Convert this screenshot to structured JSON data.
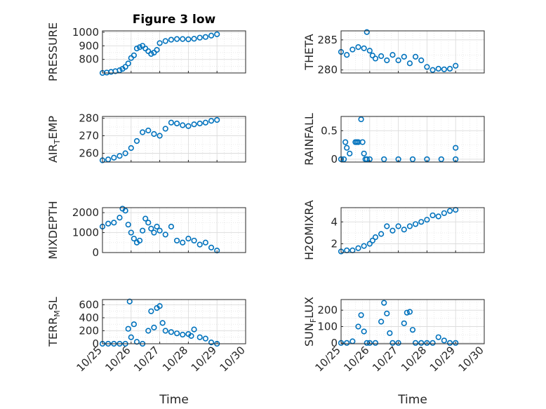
{
  "title": "Figure 3 low",
  "colors": {
    "marker": "#0072BD",
    "axis": "#262626",
    "grid": "#dcdcdc",
    "background": "#ffffff"
  },
  "shared_x": {
    "label": "Time",
    "range": [
      0,
      5
    ],
    "ticks": [
      0,
      1,
      2,
      3,
      4,
      5
    ],
    "tick_labels": [
      "10/25",
      "10/26",
      "10/27",
      "10/28",
      "10/29",
      "10/30"
    ]
  },
  "chart_data": [
    {
      "type": "scatter",
      "id": "pressure",
      "ylabel": "PRESSURE",
      "title": "Figure 3 low",
      "ylim": [
        700,
        1010
      ],
      "yticks": [
        800,
        900,
        1000
      ],
      "ytick_labels": [
        "800",
        "900",
        "1000"
      ],
      "show_xticklabels": false,
      "x": [
        0,
        0.15,
        0.3,
        0.45,
        0.6,
        0.7,
        0.8,
        0.9,
        1.0,
        1.1,
        1.2,
        1.3,
        1.4,
        1.5,
        1.6,
        1.7,
        1.8,
        1.9,
        2.0,
        2.2,
        2.4,
        2.6,
        2.8,
        3.0,
        3.2,
        3.4,
        3.6,
        3.8,
        4.0
      ],
      "y": [
        700,
        703,
        708,
        713,
        720,
        730,
        745,
        770,
        810,
        830,
        880,
        890,
        900,
        880,
        860,
        840,
        850,
        870,
        920,
        935,
        945,
        950,
        950,
        948,
        952,
        960,
        965,
        975,
        985
      ]
    },
    {
      "type": "scatter",
      "id": "theta",
      "ylabel": "THETA",
      "ylim": [
        279.5,
        286.5
      ],
      "yticks": [
        280,
        285
      ],
      "ytick_labels": [
        "280",
        "285"
      ],
      "show_xticklabels": false,
      "x": [
        0,
        0.2,
        0.4,
        0.6,
        0.8,
        0.9,
        1.0,
        1.1,
        1.2,
        1.4,
        1.6,
        1.8,
        2.0,
        2.2,
        2.4,
        2.6,
        2.8,
        3.0,
        3.2,
        3.4,
        3.6,
        3.8,
        4.0
      ],
      "y": [
        283,
        282.5,
        283.4,
        283.8,
        283.6,
        286.3,
        283.2,
        282.4,
        281.9,
        282.3,
        281.6,
        282.5,
        281.6,
        282.2,
        281.1,
        282.2,
        281.6,
        280.5,
        280,
        280.2,
        280.1,
        280.2,
        280.7
      ]
    },
    {
      "type": "scatter",
      "id": "air_temp",
      "ylabel": "AIR_TEMP",
      "ylim": [
        255,
        281
      ],
      "yticks": [
        260,
        270,
        280
      ],
      "ytick_labels": [
        "260",
        "270",
        "280"
      ],
      "show_xticklabels": false,
      "x": [
        0,
        0.2,
        0.4,
        0.6,
        0.8,
        1.0,
        1.2,
        1.4,
        1.6,
        1.8,
        2.0,
        2.2,
        2.4,
        2.6,
        2.8,
        3.0,
        3.2,
        3.4,
        3.6,
        3.8,
        4.0
      ],
      "y": [
        256,
        256.5,
        257.5,
        258.5,
        260,
        263,
        267,
        272,
        273,
        271,
        270,
        274,
        277.5,
        277,
        276,
        275.5,
        276.5,
        277,
        277.5,
        278.5,
        279
      ]
    },
    {
      "type": "scatter",
      "id": "rainfall",
      "ylabel": "RAINFALL",
      "ylim": [
        -0.05,
        0.75
      ],
      "yticks": [
        0,
        0.5
      ],
      "ytick_labels": [
        "0",
        "0.5"
      ],
      "show_xticklabels": false,
      "x": [
        0,
        0.1,
        0.15,
        0.2,
        0.3,
        0.5,
        0.55,
        0.6,
        0.7,
        0.75,
        0.8,
        0.85,
        0.9,
        1.0,
        1.5,
        2.0,
        2.5,
        3.0,
        3.5,
        4.0,
        4.0
      ],
      "y": [
        0,
        0,
        0.3,
        0.2,
        0.1,
        0.3,
        0.3,
        0.3,
        0.7,
        0.3,
        0.1,
        0,
        0,
        0,
        0,
        0,
        0,
        0,
        0,
        0,
        0.2
      ]
    },
    {
      "type": "scatter",
      "id": "mixdepth",
      "ylabel": "MIXDEPTH",
      "ylim": [
        0,
        2250
      ],
      "yticks": [
        0,
        1000,
        2000
      ],
      "ytick_labels": [
        "0",
        "1000",
        "2000"
      ],
      "show_xticklabels": false,
      "x": [
        0,
        0.2,
        0.4,
        0.6,
        0.7,
        0.8,
        0.9,
        1.0,
        1.1,
        1.2,
        1.3,
        1.4,
        1.5,
        1.6,
        1.7,
        1.8,
        1.9,
        2.0,
        2.2,
        2.4,
        2.6,
        2.8,
        3.0,
        3.2,
        3.4,
        3.6,
        3.8,
        4.0
      ],
      "y": [
        1300,
        1450,
        1500,
        1750,
        2200,
        2100,
        1400,
        1000,
        700,
        500,
        600,
        1100,
        1700,
        1500,
        1200,
        1000,
        1300,
        1100,
        900,
        1300,
        600,
        500,
        700,
        600,
        400,
        500,
        250,
        100
      ]
    },
    {
      "type": "scatter",
      "id": "h2omixra",
      "ylabel": "H2OMIXRA",
      "ylim": [
        1.2,
        5.3
      ],
      "yticks": [
        2,
        4
      ],
      "ytick_labels": [
        "2",
        "4"
      ],
      "show_xticklabels": false,
      "x": [
        0,
        0.2,
        0.4,
        0.6,
        0.8,
        1.0,
        1.1,
        1.2,
        1.4,
        1.6,
        1.8,
        2.0,
        2.2,
        2.4,
        2.6,
        2.8,
        3.0,
        3.2,
        3.4,
        3.6,
        3.8,
        4.0
      ],
      "y": [
        1.3,
        1.4,
        1.4,
        1.6,
        1.8,
        2.0,
        2.3,
        2.6,
        2.9,
        3.6,
        3.2,
        3.6,
        3.3,
        3.6,
        3.8,
        4.0,
        4.2,
        4.6,
        4.5,
        4.8,
        5.0,
        5.1
      ]
    },
    {
      "type": "scatter",
      "id": "terr_msl",
      "ylabel": "TERR_MSL",
      "ylim": [
        0,
        680
      ],
      "yticks": [
        0,
        200,
        400,
        600
      ],
      "ytick_labels": [
        "0",
        "200",
        "400",
        "600"
      ],
      "show_xticklabels": true,
      "x": [
        0,
        0.2,
        0.4,
        0.6,
        0.8,
        0.9,
        0.95,
        1.0,
        1.1,
        1.2,
        1.4,
        1.6,
        1.7,
        1.8,
        1.9,
        2.0,
        2.1,
        2.2,
        2.4,
        2.6,
        2.8,
        3.0,
        3.1,
        3.2,
        3.4,
        3.6,
        3.8,
        4.0
      ],
      "y": [
        0,
        0,
        0,
        0,
        0,
        230,
        650,
        100,
        300,
        30,
        0,
        200,
        500,
        250,
        550,
        580,
        320,
        200,
        180,
        160,
        140,
        150,
        120,
        220,
        100,
        80,
        20,
        0
      ]
    },
    {
      "type": "scatter",
      "id": "sun_flux",
      "ylabel": "SUN_FLUX",
      "ylim": [
        -5,
        265
      ],
      "yticks": [
        0,
        100,
        200
      ],
      "ytick_labels": [
        "0",
        "100",
        "200"
      ],
      "show_xticklabels": true,
      "x": [
        0,
        0.2,
        0.4,
        0.6,
        0.7,
        0.8,
        0.9,
        1.0,
        1.2,
        1.4,
        1.5,
        1.6,
        1.7,
        1.8,
        2.0,
        2.2,
        2.3,
        2.4,
        2.5,
        2.6,
        2.8,
        3.0,
        3.2,
        3.4,
        3.6,
        3.8,
        4.0
      ],
      "y": [
        0,
        0,
        10,
        100,
        170,
        70,
        0,
        0,
        0,
        130,
        245,
        180,
        60,
        0,
        0,
        120,
        185,
        190,
        80,
        0,
        0,
        0,
        0,
        35,
        15,
        0,
        0
      ]
    }
  ]
}
